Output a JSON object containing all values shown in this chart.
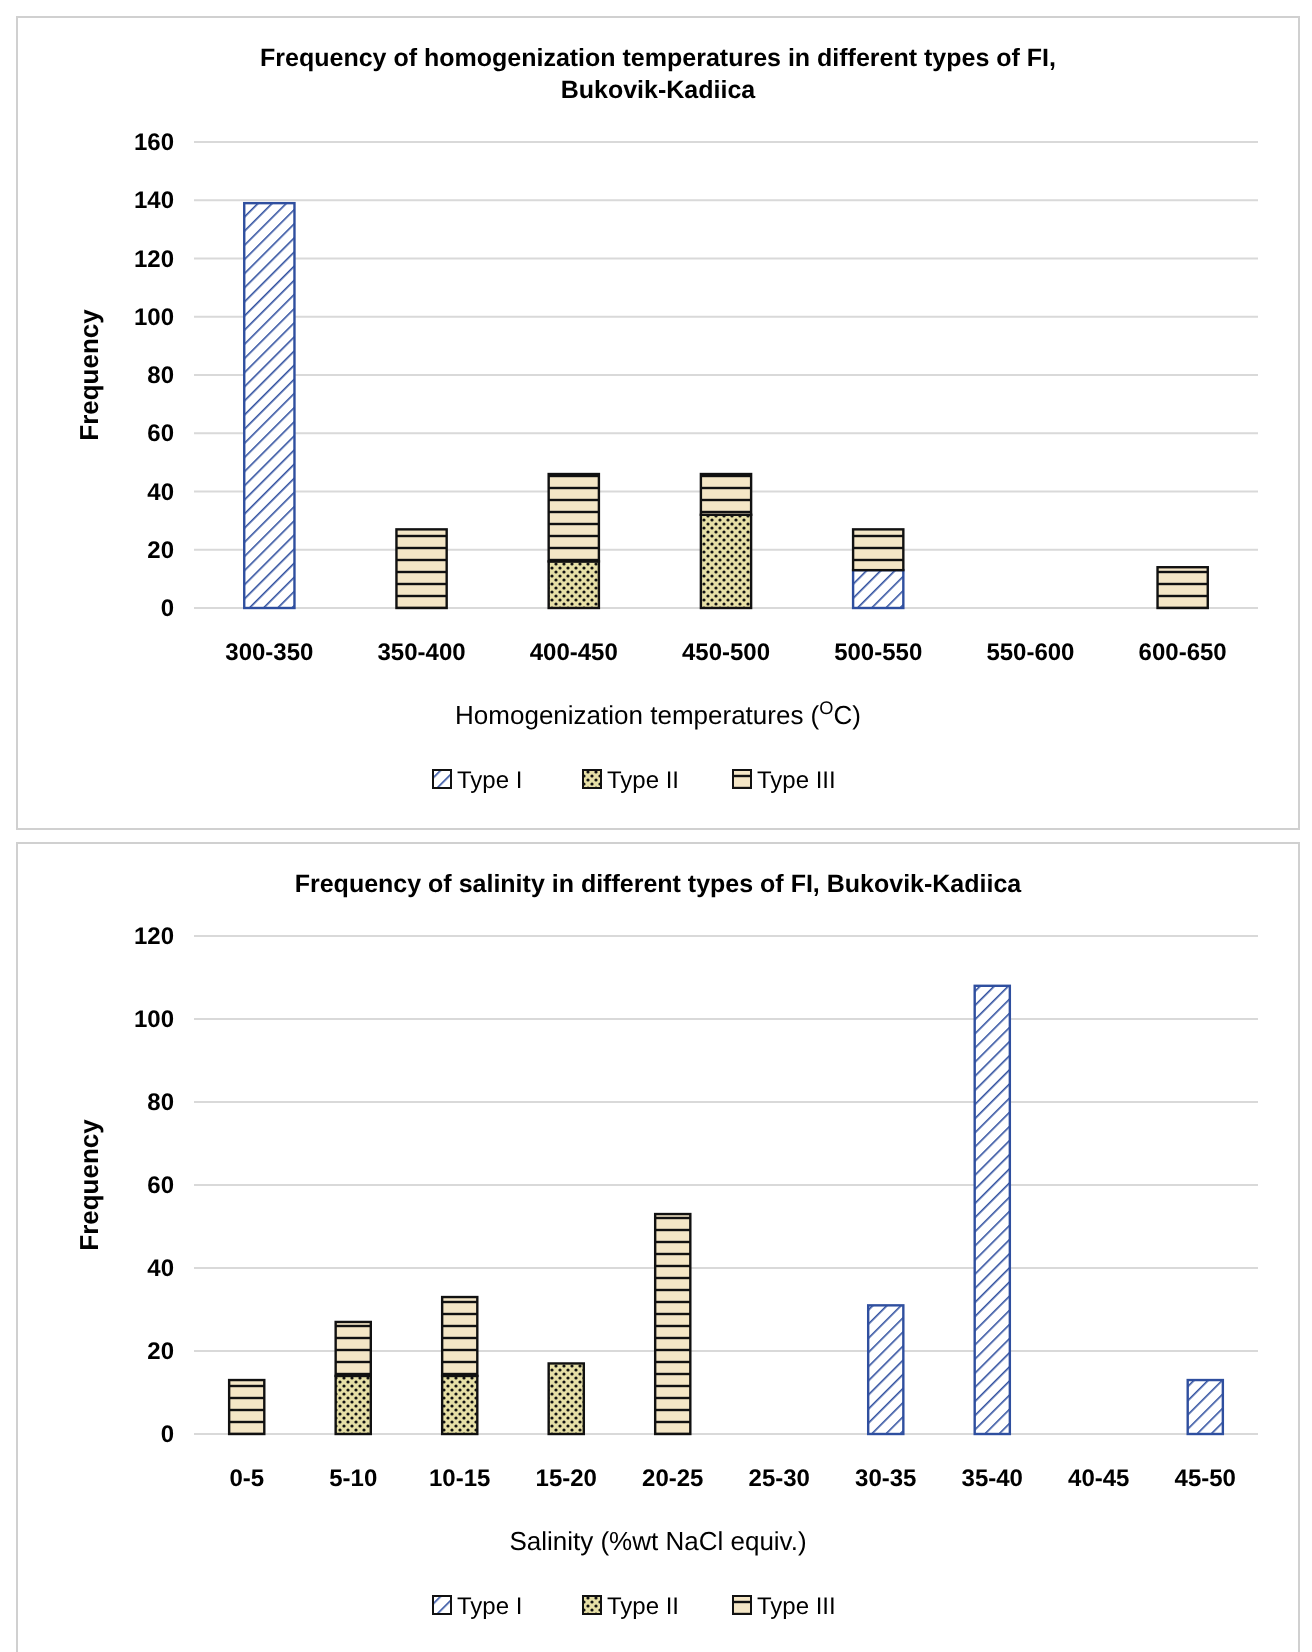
{
  "chart_data": [
    {
      "type": "bar",
      "stacked": true,
      "title": "Frequency of homogenization temperatures in different types of FI, Bukovik-Kadiica",
      "xlabel": "Homogenization temperatures ($^{O}$C)",
      "ylabel": "Frequency",
      "categories": [
        "300-350",
        "350-400",
        "400-450",
        "450-500",
        "500-550",
        "550-600",
        "600-650"
      ],
      "series": [
        {
          "name": "Type I",
          "color": "#2f4f9f",
          "values": [
            139,
            0,
            0,
            0,
            13,
            0,
            0
          ]
        },
        {
          "name": "Type II",
          "color": "#111111",
          "values": [
            0,
            0,
            16,
            32,
            0,
            0,
            0
          ]
        },
        {
          "name": "Type III",
          "color": "#111111",
          "values": [
            0,
            27,
            30,
            14,
            14,
            0,
            14
          ]
        }
      ],
      "ylim": [
        0,
        160
      ],
      "yticks": [
        0,
        20,
        40,
        60,
        80,
        100,
        120,
        140,
        160
      ],
      "grid": "y",
      "legend": "bottom"
    },
    {
      "type": "bar",
      "stacked": true,
      "title": "Frequency of salinity in different types of FI, Bukovik-Kadiica",
      "xlabel": "Salinity (%wt NaCl equiv.)",
      "ylabel": "Frequency",
      "categories": [
        "0-5",
        "5-10",
        "10-15",
        "15-20",
        "20-25",
        "25-30",
        "30-35",
        "35-40",
        "40-45",
        "45-50"
      ],
      "series": [
        {
          "name": "Type I",
          "color": "#2f4f9f",
          "values": [
            0,
            0,
            0,
            0,
            0,
            0,
            31,
            108,
            0,
            13
          ]
        },
        {
          "name": "Type II",
          "color": "#111111",
          "values": [
            0,
            14,
            14,
            17,
            0,
            0,
            0,
            0,
            0,
            0
          ]
        },
        {
          "name": "Type III",
          "color": "#111111",
          "values": [
            13,
            13,
            19,
            0,
            53,
            0,
            0,
            0,
            0,
            0
          ]
        }
      ],
      "ylim": [
        0,
        120
      ],
      "yticks": [
        0,
        20,
        40,
        60,
        80,
        100,
        120
      ],
      "grid": "y",
      "legend": "bottom"
    }
  ]
}
